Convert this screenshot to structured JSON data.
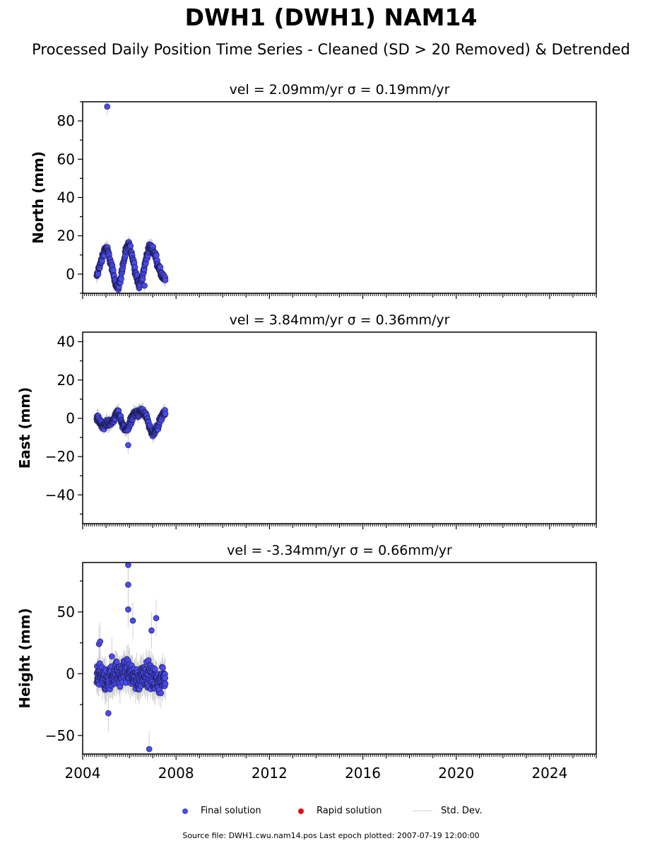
{
  "figure": {
    "title": "DWH1 (DWH1) NAM14",
    "subtitle": "Processed Daily Position Time Series - Cleaned (SD > 20 Removed) & Detrended",
    "footer": "Source file: DWH1.cwu.nam14.pos  Last epoch plotted: 2007-07-19 12:00:00"
  },
  "legend": {
    "final_label": "Final solution",
    "rapid_label": "Rapid solution",
    "std_label": "Std. Dev.",
    "final_color": "#4a4aee",
    "rapid_color": "#e01010",
    "std_color": "#d0d0d0"
  },
  "chart_data": [
    {
      "type": "scatter",
      "panel": "north",
      "title": "vel = 2.09mm/yr   σ = 0.19mm/yr",
      "xlabel": "",
      "ylabel": "North (mm)",
      "xlim": [
        2004.0,
        2026.0
      ],
      "ylim": [
        -10,
        90
      ],
      "yticks": [
        0,
        20,
        40,
        60,
        80
      ],
      "xticks": [
        2004,
        2008,
        2012,
        2016,
        2020,
        2024
      ],
      "grid": false,
      "data_range": [
        2004.6,
        2007.55
      ],
      "series": [
        {
          "kind": "final",
          "values_desc": "seasonal oscillation",
          "points": [
            [
              2004.62,
              -1
            ],
            [
              2004.7,
              3
            ],
            [
              2004.8,
              7
            ],
            [
              2004.9,
              11
            ],
            [
              2005.0,
              14
            ],
            [
              2005.1,
              11
            ],
            [
              2005.2,
              6
            ],
            [
              2005.3,
              1
            ],
            [
              2005.4,
              -4
            ],
            [
              2005.5,
              -7
            ],
            [
              2005.6,
              -4
            ],
            [
              2005.7,
              3
            ],
            [
              2005.8,
              9
            ],
            [
              2005.9,
              14
            ],
            [
              2006.0,
              15
            ],
            [
              2006.1,
              11
            ],
            [
              2006.2,
              5
            ],
            [
              2006.3,
              -1
            ],
            [
              2006.4,
              -5
            ],
            [
              2006.5,
              -4
            ],
            [
              2006.6,
              1
            ],
            [
              2006.7,
              7
            ],
            [
              2006.8,
              12
            ],
            [
              2006.9,
              14
            ],
            [
              2007.0,
              13
            ],
            [
              2007.1,
              10
            ],
            [
              2007.2,
              6
            ],
            [
              2007.3,
              2
            ],
            [
              2007.4,
              -1
            ],
            [
              2007.5,
              -3
            ]
          ],
          "outliers": [
            [
              2005.05,
              87.5
            ],
            [
              2006.65,
              -6
            ]
          ]
        }
      ]
    },
    {
      "type": "scatter",
      "panel": "east",
      "title": "vel = 3.84mm/yr   σ = 0.36mm/yr",
      "xlabel": "",
      "ylabel": "East (mm)",
      "xlim": [
        2004.0,
        2026.0
      ],
      "ylim": [
        -55,
        45
      ],
      "yticks": [
        -40,
        -20,
        0,
        20,
        40
      ],
      "xticks": [
        2004,
        2008,
        2012,
        2016,
        2020,
        2024
      ],
      "grid": false,
      "data_range": [
        2004.6,
        2007.55
      ],
      "series": [
        {
          "kind": "final",
          "values_desc": "seasonal oscillation",
          "points": [
            [
              2004.62,
              0
            ],
            [
              2004.7,
              -1
            ],
            [
              2004.8,
              -3
            ],
            [
              2004.9,
              -4
            ],
            [
              2005.0,
              -3
            ],
            [
              2005.1,
              -2
            ],
            [
              2005.2,
              -3
            ],
            [
              2005.3,
              -1
            ],
            [
              2005.4,
              1
            ],
            [
              2005.5,
              3
            ],
            [
              2005.6,
              1
            ],
            [
              2005.7,
              -3
            ],
            [
              2005.8,
              -5
            ],
            [
              2005.9,
              -6
            ],
            [
              2006.0,
              -3
            ],
            [
              2006.1,
              0
            ],
            [
              2006.2,
              2
            ],
            [
              2006.3,
              3
            ],
            [
              2006.4,
              2
            ],
            [
              2006.5,
              4
            ],
            [
              2006.6,
              3
            ],
            [
              2006.7,
              1
            ],
            [
              2006.8,
              -2
            ],
            [
              2006.9,
              -6
            ],
            [
              2007.0,
              -8
            ],
            [
              2007.1,
              -7
            ],
            [
              2007.2,
              -5
            ],
            [
              2007.3,
              -2
            ],
            [
              2007.4,
              1
            ],
            [
              2007.5,
              3
            ]
          ],
          "outliers": [
            [
              2005.95,
              -14
            ]
          ]
        }
      ]
    },
    {
      "type": "scatter",
      "panel": "height",
      "title": "vel = -3.34mm/yr   σ = 0.66mm/yr",
      "xlabel": "",
      "ylabel": "Height (mm)",
      "xlim": [
        2004.0,
        2026.0
      ],
      "ylim": [
        -65,
        90
      ],
      "yticks": [
        -50,
        0,
        50
      ],
      "xticks": [
        2004,
        2008,
        2012,
        2016,
        2020,
        2024
      ],
      "grid": false,
      "data_range": [
        2004.6,
        2007.55
      ],
      "series": [
        {
          "kind": "final",
          "values_desc": "noisy around zero",
          "points": [
            [
              2004.62,
              0
            ],
            [
              2004.8,
              -2
            ],
            [
              2005.0,
              -6
            ],
            [
              2005.2,
              -3
            ],
            [
              2005.4,
              1
            ],
            [
              2005.6,
              -2
            ],
            [
              2005.8,
              3
            ],
            [
              2006.0,
              2
            ],
            [
              2006.2,
              -3
            ],
            [
              2006.4,
              -5
            ],
            [
              2006.6,
              1
            ],
            [
              2006.8,
              0
            ],
            [
              2007.0,
              -4
            ],
            [
              2007.2,
              -7
            ],
            [
              2007.4,
              -6
            ],
            [
              2007.5,
              -3
            ]
          ],
          "outliers": [
            [
              2005.95,
              88
            ],
            [
              2005.95,
              72
            ],
            [
              2005.95,
              52
            ],
            [
              2006.15,
              43
            ],
            [
              2006.95,
              35
            ],
            [
              2007.15,
              45
            ],
            [
              2006.85,
              -61
            ],
            [
              2004.7,
              24
            ],
            [
              2004.75,
              26
            ],
            [
              2005.25,
              14
            ],
            [
              2005.1,
              -32
            ]
          ]
        }
      ]
    }
  ]
}
